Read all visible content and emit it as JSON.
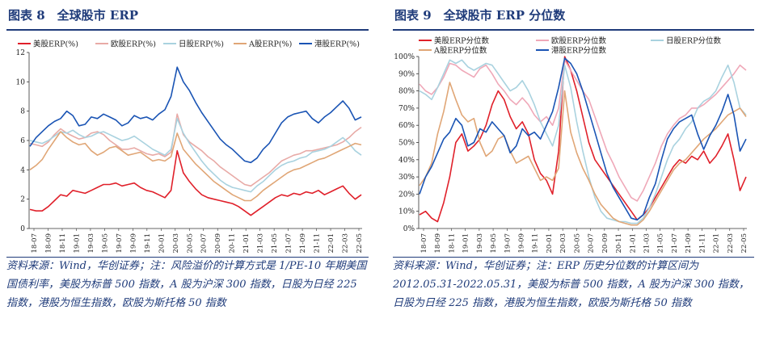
{
  "panels": [
    {
      "title": "图表 8　全球股市 ERP",
      "note": "资料来源：Wind，华创证券；注：风险溢价的计算方式是 1/PE-10 年期美国国债利率，美股为标普 500 指数，A 股为沪深 300 指数，日股为日经 225 指数，港股为恒生指数，欧股为斯托格 50 指数",
      "chart_data": {
        "type": "line",
        "ylim": [
          0,
          12
        ],
        "yticks": [
          "0",
          "2",
          "4",
          "6",
          "8",
          "10",
          "12"
        ],
        "xlabels": [
          "18-07",
          "18-09",
          "18-11",
          "19-01",
          "19-03",
          "19-05",
          "19-07",
          "19-09",
          "19-11",
          "20-01",
          "20-03",
          "20-05",
          "20-07",
          "20-09",
          "20-11",
          "21-01",
          "21-03",
          "21-05",
          "21-07",
          "21-09",
          "21-11",
          "22-01",
          "22-03",
          "22-05"
        ],
        "series": [
          {
            "name": "美股ERP(%)",
            "color": "#e0202a",
            "values": [
              1.3,
              1.2,
              1.2,
              1.5,
              1.9,
              2.3,
              2.2,
              2.6,
              2.5,
              2.4,
              2.6,
              2.8,
              3.0,
              3.0,
              3.1,
              2.9,
              3.0,
              3.1,
              2.8,
              2.6,
              2.5,
              2.3,
              2.1,
              2.6,
              5.3,
              3.8,
              3.2,
              2.7,
              2.3,
              2.1,
              2.0,
              1.9,
              1.8,
              1.7,
              1.5,
              1.2,
              0.9,
              1.2,
              1.5,
              1.8,
              2.1,
              2.3,
              2.2,
              2.4,
              2.3,
              2.5,
              2.4,
              2.6,
              2.3,
              2.5,
              2.7,
              2.9,
              2.4,
              2.0,
              2.3
            ]
          },
          {
            "name": "欧股ERP(%)",
            "color": "#e8aaa6",
            "values": [
              5.8,
              5.7,
              5.6,
              5.9,
              6.4,
              6.8,
              6.5,
              6.3,
              6.1,
              6.2,
              6.5,
              6.6,
              6.4,
              6.0,
              5.7,
              5.4,
              5.4,
              5.5,
              5.3,
              5.1,
              5.0,
              5.1,
              4.9,
              5.2,
              7.8,
              6.4,
              5.9,
              5.6,
              5.3,
              4.9,
              4.6,
              4.2,
              3.9,
              3.6,
              3.3,
              3.0,
              2.9,
              3.2,
              3.5,
              3.8,
              4.2,
              4.6,
              4.8,
              5.0,
              5.1,
              5.3,
              5.3,
              5.4,
              5.5,
              5.6,
              5.7,
              5.9,
              6.2,
              6.6,
              6.9
            ]
          },
          {
            "name": "日股ERP(%)",
            "color": "#a9d2df",
            "values": [
              6.0,
              5.9,
              5.8,
              6.0,
              6.3,
              6.6,
              6.5,
              6.7,
              6.4,
              6.2,
              6.3,
              6.5,
              6.6,
              6.4,
              6.2,
              6.0,
              6.1,
              6.3,
              6.0,
              5.7,
              5.4,
              5.2,
              5.0,
              5.4,
              7.5,
              6.5,
              5.8,
              5.2,
              4.6,
              4.1,
              3.7,
              3.3,
              3.0,
              2.8,
              2.7,
              2.6,
              2.5,
              2.9,
              3.2,
              3.6,
              4.0,
              4.3,
              4.5,
              4.6,
              4.8,
              4.9,
              5.2,
              5.3,
              5.4,
              5.6,
              5.9,
              6.2,
              5.8,
              5.3,
              5.0
            ]
          },
          {
            "name": "A股ERP(%)",
            "color": "#e0a676",
            "values": [
              4.0,
              4.3,
              4.7,
              5.4,
              6.0,
              6.6,
              6.2,
              5.9,
              5.7,
              5.8,
              5.3,
              5.0,
              5.2,
              5.5,
              5.6,
              5.3,
              5.0,
              5.1,
              5.2,
              4.9,
              4.6,
              4.7,
              4.6,
              4.9,
              6.5,
              5.4,
              4.9,
              4.4,
              4.0,
              3.6,
              3.2,
              2.9,
              2.6,
              2.3,
              2.1,
              1.9,
              1.9,
              2.2,
              2.6,
              2.9,
              3.2,
              3.5,
              3.8,
              4.0,
              4.1,
              4.3,
              4.5,
              4.7,
              4.8,
              5.0,
              5.2,
              5.4,
              5.6,
              5.8,
              5.7
            ]
          },
          {
            "name": "港股ERP(%)",
            "color": "#1a54b4",
            "values": [
              5.6,
              6.2,
              6.6,
              7.0,
              7.3,
              7.5,
              8.0,
              7.7,
              7.0,
              7.1,
              7.6,
              7.5,
              7.8,
              7.6,
              7.4,
              7.0,
              7.2,
              7.7,
              7.5,
              7.6,
              7.4,
              7.8,
              8.1,
              9.0,
              11.0,
              10.0,
              9.4,
              8.6,
              7.9,
              7.3,
              6.7,
              6.1,
              5.7,
              5.4,
              5.0,
              4.6,
              4.5,
              4.8,
              5.4,
              5.8,
              6.5,
              7.2,
              7.6,
              7.8,
              7.9,
              8.0,
              7.5,
              7.2,
              7.6,
              7.9,
              8.3,
              8.7,
              8.2,
              7.4,
              7.6
            ]
          }
        ]
      }
    },
    {
      "title": "图表 9　全球股市 ERP 分位数",
      "note": "资料来源：Wind，华创证券；注：ERP 历史分位数的计算区间为 2012.05.31-2022.05.31，美股为标普 500 指数，A 股为沪深 300 指数，日股为日经 225 指数，港股为恒生指数，欧股为斯托格 50 指数",
      "chart_data": {
        "type": "line",
        "ylim": [
          0,
          100
        ],
        "yticks": [
          "0%",
          "10%",
          "20%",
          "30%",
          "40%",
          "50%",
          "60%",
          "70%",
          "80%",
          "90%",
          "100%"
        ],
        "xlabels": [
          "18-07",
          "18-09",
          "18-11",
          "19-01",
          "19-03",
          "19-05",
          "19-07",
          "19-09",
          "19-11",
          "20-01",
          "20-03",
          "20-05",
          "20-07",
          "20-09",
          "20-11",
          "21-01",
          "21-03",
          "21-05",
          "21-07",
          "21-09",
          "21-11",
          "22-01",
          "22-03",
          "22-05"
        ],
        "series": [
          {
            "name": "美股ERP分位数",
            "color": "#e0202a",
            "values": [
              8,
              10,
              6,
              4,
              15,
              30,
              50,
              55,
              45,
              48,
              52,
              60,
              72,
              80,
              75,
              65,
              58,
              62,
              55,
              40,
              32,
              28,
              20,
              45,
              100,
              92,
              80,
              65,
              50,
              40,
              35,
              30,
              25,
              20,
              15,
              10,
              5,
              8,
              12,
              18,
              24,
              30,
              36,
              40,
              38,
              42,
              40,
              45,
              38,
              42,
              48,
              55,
              40,
              22,
              30
            ]
          },
          {
            "name": "欧股ERP分位数",
            "color": "#efa8b8",
            "values": [
              84,
              80,
              78,
              82,
              88,
              96,
              95,
              92,
              90,
              88,
              93,
              95,
              90,
              84,
              80,
              75,
              72,
              76,
              72,
              66,
              62,
              65,
              60,
              70,
              98,
              92,
              86,
              80,
              75,
              65,
              55,
              45,
              38,
              30,
              24,
              18,
              16,
              22,
              30,
              38,
              48,
              55,
              60,
              64,
              66,
              70,
              70,
              72,
              75,
              78,
              82,
              86,
              90,
              95,
              92
            ]
          },
          {
            "name": "日股ERP分位数",
            "color": "#a9d2df",
            "values": [
              80,
              78,
              75,
              82,
              90,
              98,
              96,
              98,
              94,
              92,
              94,
              96,
              95,
              90,
              85,
              80,
              82,
              86,
              80,
              72,
              62,
              55,
              48,
              60,
              95,
              82,
              62,
              45,
              30,
              18,
              10,
              6,
              5,
              4,
              4,
              3,
              3,
              6,
              12,
              20,
              30,
              40,
              48,
              52,
              58,
              62,
              70,
              74,
              76,
              80,
              88,
              95,
              85,
              70,
              66
            ]
          },
          {
            "name": "A股ERP分位数",
            "color": "#e0a676",
            "values": [
              25,
              30,
              38,
              55,
              68,
              85,
              75,
              66,
              62,
              64,
              50,
              42,
              45,
              52,
              54,
              45,
              38,
              40,
              42,
              35,
              28,
              30,
              28,
              35,
              80,
              56,
              44,
              35,
              28,
              20,
              14,
              10,
              6,
              4,
              3,
              2,
              2,
              5,
              10,
              16,
              22,
              28,
              34,
              38,
              40,
              44,
              48,
              52,
              55,
              58,
              62,
              66,
              68,
              70,
              65
            ]
          },
          {
            "name": "港股ERP分位数",
            "color": "#1a54b4",
            "values": [
              20,
              30,
              36,
              44,
              52,
              56,
              64,
              60,
              48,
              50,
              58,
              56,
              62,
              58,
              54,
              44,
              48,
              58,
              54,
              56,
              52,
              60,
              68,
              82,
              99,
              96,
              90,
              80,
              68,
              56,
              44,
              32,
              24,
              18,
              12,
              6,
              5,
              8,
              18,
              26,
              40,
              52,
              58,
              62,
              64,
              66,
              55,
              46,
              54,
              60,
              68,
              78,
              66,
              45,
              52
            ]
          }
        ]
      }
    }
  ]
}
